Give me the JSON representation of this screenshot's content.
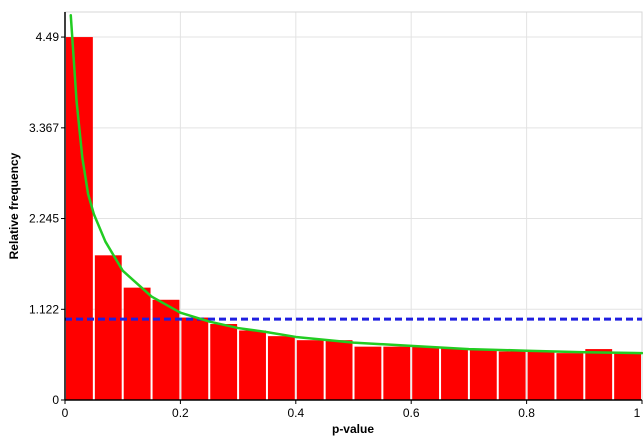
{
  "chart_data": {
    "type": "bar",
    "title": "",
    "xlabel": "p-value",
    "ylabel": "Relative frequency",
    "xlim": [
      0,
      1
    ],
    "ylim": [
      0,
      4.8
    ],
    "x_ticks": [
      0,
      0.2,
      0.4,
      0.6,
      0.8,
      1
    ],
    "x_tick_labels": [
      "0",
      "0.2",
      "0.4",
      "0.6",
      "0.8",
      "1"
    ],
    "y_ticks": [
      0,
      1.122,
      2.245,
      3.367,
      4.49
    ],
    "y_tick_labels": [
      "0",
      "1.122",
      "2.245",
      "3.367",
      "4.49"
    ],
    "grid": true,
    "bin_width": 0.05,
    "bins_left": [
      0,
      0.05,
      0.1,
      0.15,
      0.2,
      0.25,
      0.3,
      0.35,
      0.4,
      0.45,
      0.5,
      0.55,
      0.6,
      0.65,
      0.7,
      0.75,
      0.8,
      0.85,
      0.9,
      0.95
    ],
    "values": [
      4.49,
      1.79,
      1.39,
      1.24,
      1.02,
      0.94,
      0.86,
      0.79,
      0.74,
      0.74,
      0.66,
      0.66,
      0.66,
      0.64,
      0.62,
      0.6,
      0.6,
      0.58,
      0.63,
      0.58
    ],
    "series": [
      {
        "type": "bar",
        "values": [
          4.49,
          1.79,
          1.39,
          1.24,
          1.02,
          0.94,
          0.86,
          0.79,
          0.74,
          0.74,
          0.66,
          0.66,
          0.66,
          0.64,
          0.62,
          0.6,
          0.6,
          0.58,
          0.63,
          0.58
        ],
        "color": "#ff0000"
      },
      {
        "type": "line",
        "style": "solid",
        "color": "#22cc22",
        "x": [
          0.01,
          0.02,
          0.03,
          0.04,
          0.05,
          0.07,
          0.1,
          0.15,
          0.2,
          0.25,
          0.3,
          0.35,
          0.4,
          0.5,
          0.6,
          0.7,
          0.8,
          0.9,
          1.0
        ],
        "y": [
          4.76,
          3.7,
          3.0,
          2.55,
          2.3,
          1.96,
          1.6,
          1.28,
          1.08,
          0.97,
          0.89,
          0.84,
          0.78,
          0.71,
          0.67,
          0.63,
          0.61,
          0.59,
          0.58
        ]
      },
      {
        "type": "line",
        "style": "dashed",
        "color": "#1f1fe0",
        "x": [
          0,
          1
        ],
        "y": [
          1.0,
          1.0
        ]
      }
    ],
    "colors": {
      "bar": "#ff0000",
      "curve": "#22cc22",
      "reference": "#1f1fe0",
      "grid": "#e3e3e3",
      "plot_border": "#d7d7d7",
      "axis": "#000000"
    }
  }
}
